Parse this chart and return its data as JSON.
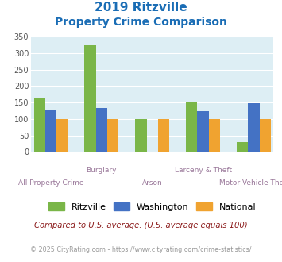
{
  "title_line1": "2019 Ritzville",
  "title_line2": "Property Crime Comparison",
  "categories": [
    "All Property Crime",
    "Burglary",
    "Arson",
    "Larceny & Theft",
    "Motor Vehicle Theft"
  ],
  "cat_labels_row1": [
    "",
    "Burglary",
    "",
    "Larceny & Theft",
    ""
  ],
  "cat_labels_row2": [
    "All Property Crime",
    "",
    "Arson",
    "",
    "Motor Vehicle Theft"
  ],
  "ritzville": [
    163,
    323,
    100,
    150,
    30
  ],
  "washington": [
    127,
    133,
    0,
    123,
    147
  ],
  "national": [
    100,
    100,
    100,
    100,
    100
  ],
  "color_ritzville": "#7ab648",
  "color_washington": "#4472c4",
  "color_national": "#f0a330",
  "bg_color": "#ddeef4",
  "title_color": "#1a6db5",
  "ylim": [
    0,
    350
  ],
  "yticks": [
    0,
    50,
    100,
    150,
    200,
    250,
    300,
    350
  ],
  "footnote1": "Compared to U.S. average. (U.S. average equals 100)",
  "footnote2": "© 2025 CityRating.com - https://www.cityrating.com/crime-statistics/",
  "footnote1_color": "#8b1a1a",
  "footnote2_color": "#999999",
  "legend_labels": [
    "Ritzville",
    "Washington",
    "National"
  ],
  "xlabel_color": "#997799",
  "grid_color": "#ffffff"
}
